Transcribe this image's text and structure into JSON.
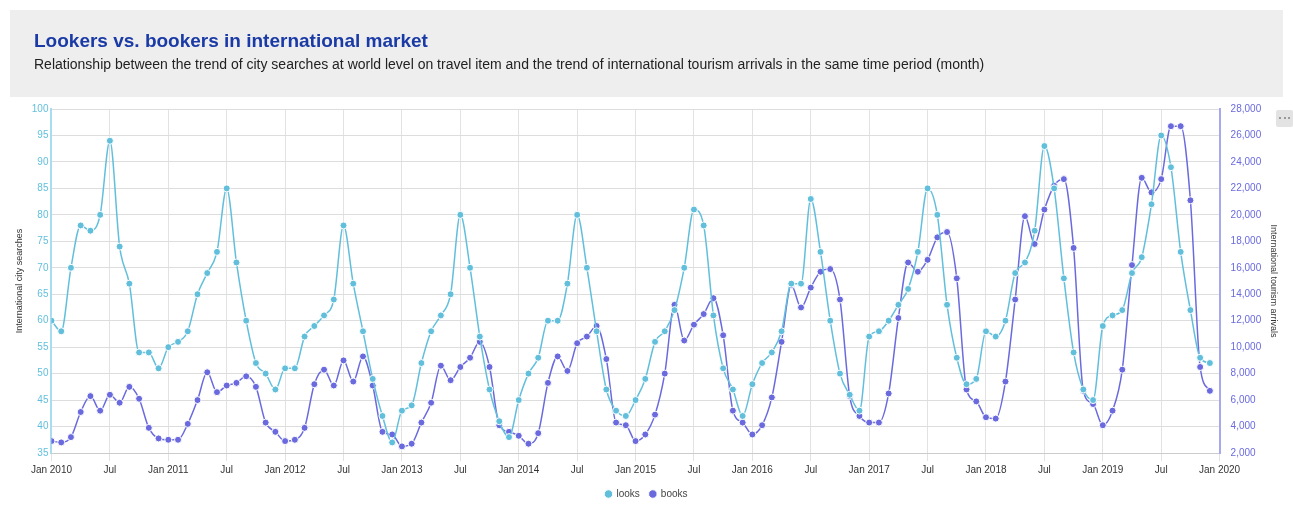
{
  "chart_data": {
    "type": "line",
    "title": "Lookers vs. bookers in international market",
    "subtitle": "Relationship between the trend of city searches at world level on travel item and the trend of international tourism arrivals in the same time period (month)",
    "ylabel": "International city searches",
    "y2label": "International tourism arrivals",
    "x": [
      "2010-01",
      "2010-02",
      "2010-03",
      "2010-04",
      "2010-05",
      "2010-06",
      "2010-07",
      "2010-08",
      "2010-09",
      "2010-10",
      "2010-11",
      "2010-12",
      "2011-01",
      "2011-02",
      "2011-03",
      "2011-04",
      "2011-05",
      "2011-06",
      "2011-07",
      "2011-08",
      "2011-09",
      "2011-10",
      "2011-11",
      "2011-12",
      "2012-01",
      "2012-02",
      "2012-03",
      "2012-04",
      "2012-05",
      "2012-06",
      "2012-07",
      "2012-08",
      "2012-09",
      "2012-10",
      "2012-11",
      "2012-12",
      "2013-01",
      "2013-02",
      "2013-03",
      "2013-04",
      "2013-05",
      "2013-06",
      "2013-07",
      "2013-08",
      "2013-09",
      "2013-10",
      "2013-11",
      "2013-12",
      "2014-01",
      "2014-02",
      "2014-03",
      "2014-04",
      "2014-05",
      "2014-06",
      "2014-07",
      "2014-08",
      "2014-09",
      "2014-10",
      "2014-11",
      "2014-12",
      "2015-01",
      "2015-02",
      "2015-03",
      "2015-04",
      "2015-05",
      "2015-06",
      "2015-07",
      "2015-08",
      "2015-09",
      "2015-10",
      "2015-11",
      "2015-12",
      "2016-01",
      "2016-02",
      "2016-03",
      "2016-04",
      "2016-05",
      "2016-06",
      "2016-07",
      "2016-08",
      "2016-09",
      "2016-10",
      "2016-11",
      "2016-12",
      "2017-01",
      "2017-02",
      "2017-03",
      "2017-04",
      "2017-05",
      "2017-06",
      "2017-07",
      "2017-08",
      "2017-09",
      "2017-10",
      "2017-11",
      "2017-12",
      "2018-01",
      "2018-02",
      "2018-03",
      "2018-04",
      "2018-05",
      "2018-06",
      "2018-07",
      "2018-08",
      "2018-09",
      "2018-10",
      "2018-11",
      "2018-12",
      "2019-01",
      "2019-02",
      "2019-03",
      "2019-04",
      "2019-05",
      "2019-06",
      "2019-07",
      "2019-08",
      "2019-09",
      "2019-10",
      "2019-11",
      "2019-12"
    ],
    "series": [
      {
        "name": "looks",
        "color": "#62bfdc",
        "values": [
          60,
          58,
          70,
          78,
          77,
          80,
          94,
          74,
          67,
          54,
          54,
          51,
          55,
          56,
          58,
          65,
          69,
          73,
          85,
          71,
          60,
          52,
          50,
          47,
          51,
          51,
          57,
          59,
          61,
          64,
          78,
          67,
          58,
          49,
          42,
          37,
          43,
          44,
          52,
          58,
          61,
          65,
          80,
          70,
          57,
          47,
          41,
          38,
          45,
          50,
          53,
          60,
          60,
          67,
          80,
          70,
          58,
          47,
          43,
          42,
          45,
          49,
          56,
          58,
          62,
          70,
          81,
          78,
          61,
          51,
          47,
          42,
          48,
          52,
          54,
          58,
          67,
          67,
          83,
          73,
          60,
          50,
          46,
          43,
          57,
          58,
          60,
          63,
          66,
          73,
          85,
          80,
          63,
          53,
          48,
          49,
          58,
          57,
          60,
          69,
          71,
          77,
          93,
          85,
          68,
          54,
          47,
          45,
          59,
          61,
          62,
          69,
          72,
          82,
          95,
          89,
          73,
          62,
          53,
          52
        ]
      },
      {
        "name": "books",
        "color": "#6a6ade",
        "axis": "y2",
        "values": [
          2900,
          2800,
          3200,
          5100,
          6300,
          5200,
          6400,
          5800,
          7000,
          6100,
          3900,
          3100,
          3000,
          3000,
          4200,
          6000,
          8100,
          6600,
          7100,
          7300,
          7800,
          7000,
          4300,
          3600,
          2900,
          3000,
          3900,
          7200,
          8300,
          7100,
          9000,
          7400,
          9300,
          7100,
          3600,
          3400,
          2500,
          2700,
          4300,
          5800,
          8600,
          7500,
          8500,
          9200,
          10400,
          8500,
          4100,
          3600,
          3300,
          2700,
          3500,
          7300,
          9300,
          8200,
          10300,
          10800,
          11600,
          9100,
          4300,
          4100,
          2900,
          3400,
          4900,
          8000,
          13200,
          10500,
          11700,
          12500,
          13700,
          10900,
          5200,
          4300,
          3400,
          4100,
          6200,
          10400,
          14700,
          13000,
          14500,
          15700,
          15900,
          13600,
          6300,
          4800,
          4300,
          4300,
          6500,
          12200,
          16400,
          15700,
          16600,
          18300,
          18700,
          15200,
          6800,
          5900,
          4700,
          4600,
          7400,
          13600,
          19900,
          17800,
          20400,
          22200,
          22700,
          17500,
          6700,
          5700,
          4100,
          5200,
          8300,
          16200,
          22800,
          21700,
          22700,
          26700,
          26700,
          21100,
          8500,
          6700
        ]
      }
    ],
    "xlim": [
      "2010-01",
      "2020-01"
    ],
    "xticks": [
      {
        "value": "2010-01",
        "label": "Jan 2010"
      },
      {
        "value": "2010-07",
        "label": "Jul"
      },
      {
        "value": "2011-01",
        "label": "Jan 2011"
      },
      {
        "value": "2011-07",
        "label": "Jul"
      },
      {
        "value": "2012-01",
        "label": "Jan 2012"
      },
      {
        "value": "2012-07",
        "label": "Jul"
      },
      {
        "value": "2013-01",
        "label": "Jan 2013"
      },
      {
        "value": "2013-07",
        "label": "Jul"
      },
      {
        "value": "2014-01",
        "label": "Jan 2014"
      },
      {
        "value": "2014-07",
        "label": "Jul"
      },
      {
        "value": "2015-01",
        "label": "Jan 2015"
      },
      {
        "value": "2015-07",
        "label": "Jul"
      },
      {
        "value": "2016-01",
        "label": "Jan 2016"
      },
      {
        "value": "2016-07",
        "label": "Jul"
      },
      {
        "value": "2017-01",
        "label": "Jan 2017"
      },
      {
        "value": "2017-07",
        "label": "Jul"
      },
      {
        "value": "2018-01",
        "label": "Jan 2018"
      },
      {
        "value": "2018-07",
        "label": "Jul"
      },
      {
        "value": "2019-01",
        "label": "Jan 2019"
      },
      {
        "value": "2019-07",
        "label": "Jul"
      },
      {
        "value": "2020-01",
        "label": "Jan 2020"
      }
    ],
    "ylim": [
      35,
      100
    ],
    "yticks": [
      35,
      40,
      45,
      50,
      55,
      60,
      65,
      70,
      75,
      80,
      85,
      90,
      95,
      100
    ],
    "y2lim": [
      2000,
      28000
    ],
    "y2ticks": [
      {
        "value": 2000,
        "label": "2,000"
      },
      {
        "value": 4000,
        "label": "4,000"
      },
      {
        "value": 6000,
        "label": "6,000"
      },
      {
        "value": 8000,
        "label": "8,000"
      },
      {
        "value": 10000,
        "label": "10,000"
      },
      {
        "value": 12000,
        "label": "12,000"
      },
      {
        "value": 14000,
        "label": "14,000"
      },
      {
        "value": 16000,
        "label": "16,000"
      },
      {
        "value": 18000,
        "label": "18,000"
      },
      {
        "value": 20000,
        "label": "20,000"
      },
      {
        "value": 22000,
        "label": "22,000"
      },
      {
        "value": 24000,
        "label": "24,000"
      },
      {
        "value": 26000,
        "label": "26,000"
      },
      {
        "value": 28000,
        "label": "28,000"
      }
    ],
    "grid": true,
    "legend": "bottom",
    "marker": "circle",
    "line_style": "solid"
  }
}
